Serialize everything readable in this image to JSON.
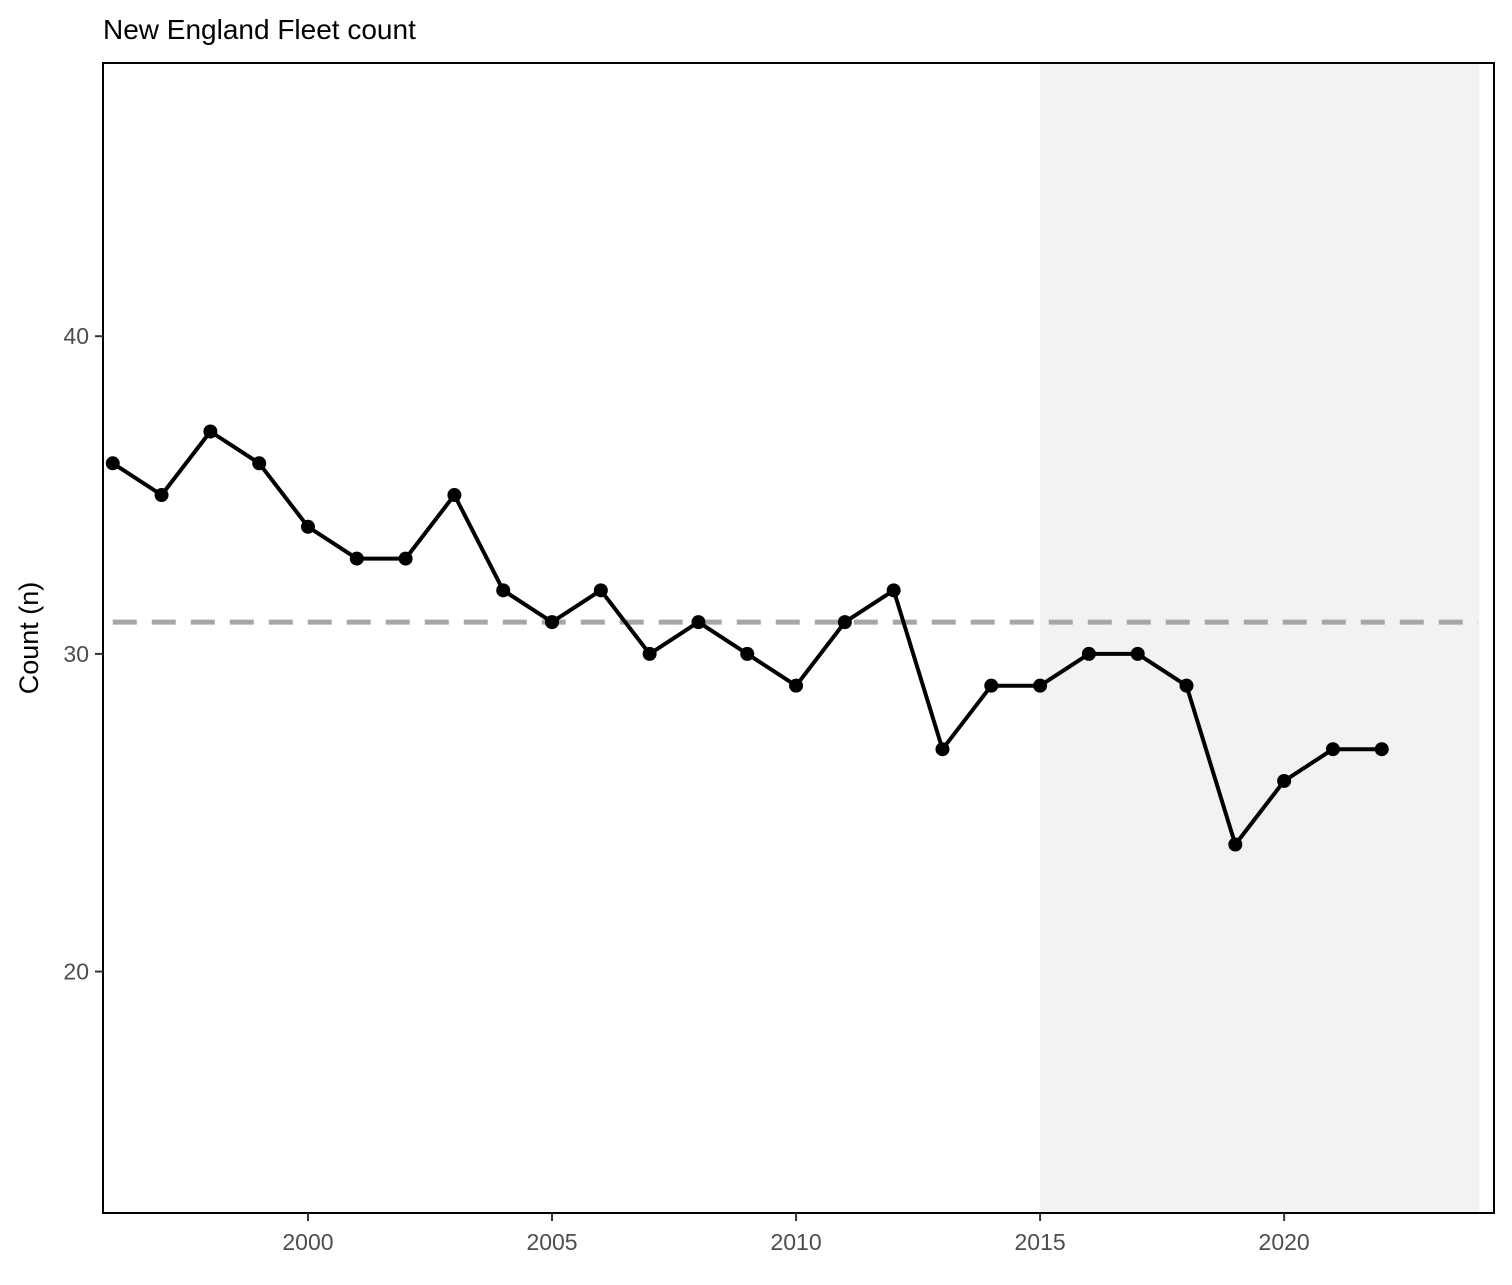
{
  "chart_data": {
    "type": "line",
    "title": "New England Fleet count",
    "xlabel": "",
    "ylabel": "Count (n)",
    "x": [
      1996,
      1997,
      1998,
      1999,
      2000,
      2001,
      2002,
      2003,
      2004,
      2005,
      2006,
      2007,
      2008,
      2009,
      2010,
      2011,
      2012,
      2013,
      2014,
      2015,
      2016,
      2017,
      2018,
      2019,
      2020,
      2021,
      2022
    ],
    "series": [
      {
        "values": [
          36,
          35,
          37,
          36,
          34,
          33,
          33,
          35,
          32,
          31,
          32,
          30,
          31,
          30,
          29,
          31,
          32,
          27,
          29,
          29,
          30,
          30,
          29,
          24,
          26,
          27,
          27
        ],
        "color": "#000000"
      }
    ],
    "reference_line": {
      "y": 31,
      "style": "dashed",
      "color": "#a6a6a6"
    },
    "shaded_region": {
      "x_start": 2015,
      "x_end": 2024,
      "color": "#f2f2f2"
    },
    "xlim": [
      1995.8,
      2024.3
    ],
    "ylim": [
      12.4,
      48.6
    ],
    "xticks": [
      2000,
      2005,
      2010,
      2015,
      2020
    ],
    "yticks": [
      20,
      30,
      40
    ],
    "grid": false,
    "legend": "none"
  }
}
